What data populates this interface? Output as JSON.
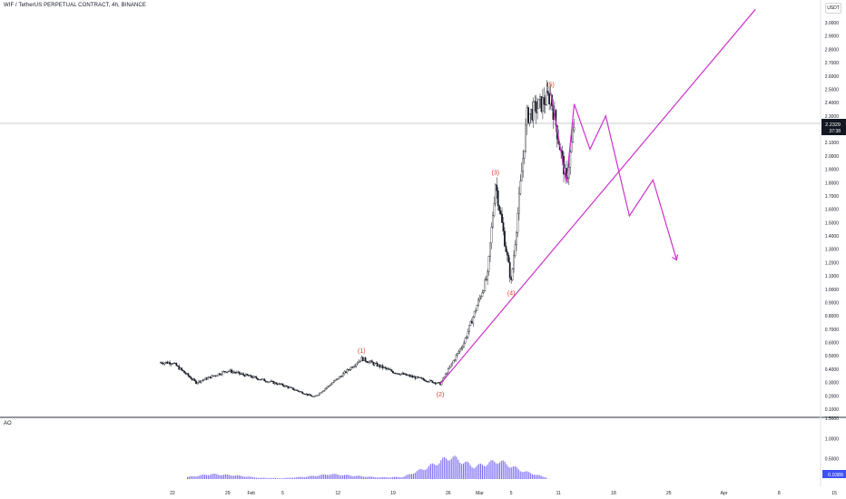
{
  "header": {
    "symbol_title": "WIF / TetherUS PERPETUAL CONTRACT, 4h, BINANCE",
    "currency": "USDT"
  },
  "price_axis": {
    "ticks": [
      "3.0000",
      "2.9000",
      "2.8000",
      "2.7000",
      "2.6000",
      "2.5000",
      "2.4000",
      "2.3000",
      "2.1000",
      "2.0000",
      "1.9000",
      "1.8000",
      "1.7000",
      "1.6000",
      "1.5000",
      "1.4000",
      "1.3000",
      "1.2000",
      "1.1000",
      "1.0000",
      "0.9000",
      "0.8000",
      "0.7000",
      "0.6000",
      "0.5000",
      "0.4000",
      "0.3000",
      "0.2000",
      "0.1000"
    ],
    "current_price": "2.2329",
    "countdown": "37:38"
  },
  "indicator": {
    "label": "AO",
    "axis_ticks": [
      "1.5000",
      "1.0000",
      "0.5000"
    ],
    "current_value": "0.0389"
  },
  "time_axis": {
    "ticks": [
      "22",
      "29",
      "Feb",
      "5",
      "12",
      "19",
      "26",
      "Mar",
      "5",
      "11",
      "18",
      "25",
      "Apr",
      "8",
      "15"
    ]
  },
  "wave_labels": [
    "(1)",
    "(2)",
    "(3)",
    "(4)",
    "(5)"
  ],
  "colors": {
    "projection": "#cc33cc",
    "wave_label": "#e53935",
    "ao_bar": "#7c6cf2",
    "ao_badge": "#3f51f5",
    "candle": "#131722",
    "price_badge": "#131722"
  },
  "chart_data": {
    "type": "candlestick",
    "timeframe": "4h",
    "y_range": [
      0.1,
      3.0
    ],
    "x_ticks": [
      "22",
      "29",
      "Feb",
      "5",
      "12",
      "19",
      "26",
      "Mar",
      "5",
      "11",
      "18",
      "25",
      "Apr",
      "8",
      "15"
    ],
    "price_path": [
      {
        "x": "Jan 22",
        "y": 0.45
      },
      {
        "x": "Jan 25",
        "y": 0.3
      },
      {
        "x": "Jan 29",
        "y": 0.39
      },
      {
        "x": "Feb 5",
        "y": 0.28
      },
      {
        "x": "Feb 9",
        "y": 0.19
      },
      {
        "x": "Feb 12",
        "y": 0.33
      },
      {
        "x": "Feb 15",
        "y": 0.48
      },
      {
        "x": "Feb 19",
        "y": 0.38
      },
      {
        "x": "Feb 25",
        "y": 0.29
      },
      {
        "x": "Feb 28",
        "y": 0.6
      },
      {
        "x": "Mar 2",
        "y": 1.1
      },
      {
        "x": "Mar 3",
        "y": 1.8
      },
      {
        "x": "Mar 5",
        "y": 1.05
      },
      {
        "x": "Mar 7",
        "y": 2.3
      },
      {
        "x": "Mar 10",
        "y": 2.45
      },
      {
        "x": "Mar 12",
        "y": 1.8
      },
      {
        "x": "Mar 13",
        "y": 2.23
      }
    ],
    "current_price": 2.2329,
    "elliott_waves": [
      {
        "label": "(1)",
        "x": "Feb 15",
        "y": 0.48
      },
      {
        "label": "(2)",
        "x": "Feb 25",
        "y": 0.29
      },
      {
        "label": "(3)",
        "x": "Mar 3",
        "y": 1.82
      },
      {
        "label": "(4)",
        "x": "Mar 5",
        "y": 1.05
      },
      {
        "label": "(5)",
        "x": "Mar 10",
        "y": 2.48
      }
    ],
    "trendline": [
      {
        "x": "Feb 25",
        "y": 0.29
      },
      {
        "x": "Apr 5",
        "y": 3.1
      }
    ],
    "projection_path": [
      {
        "x": "Mar 10",
        "y": 2.48
      },
      {
        "x": "Mar 12",
        "y": 1.8
      },
      {
        "x": "Mar 13",
        "y": 2.39
      },
      {
        "x": "Mar 15",
        "y": 2.05
      },
      {
        "x": "Mar 17",
        "y": 2.3
      },
      {
        "x": "Mar 20",
        "y": 1.55
      },
      {
        "x": "Mar 23",
        "y": 1.82
      },
      {
        "x": "Mar 26",
        "y": 1.22
      }
    ],
    "ao": {
      "y_range": [
        0,
        1.5
      ],
      "ticks": [
        "1.5000",
        "1.0000",
        "0.5000"
      ],
      "current": 0.0389,
      "values": [
        0.05,
        0.12,
        0.09,
        0.03,
        0.02,
        0.06,
        0.12,
        0.08,
        0.04,
        0.05,
        0.28,
        0.55,
        0.3,
        0.45,
        0.2,
        0.04
      ]
    }
  }
}
